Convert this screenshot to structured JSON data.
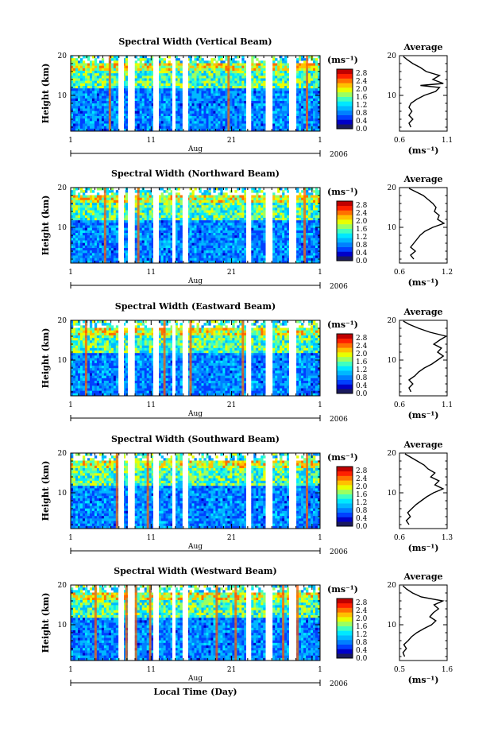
{
  "chart_data": [
    {
      "type": "heatmap",
      "title": "Spectral Width (Vertical Beam)",
      "ylabel": "Height (km)",
      "y_ticks": [
        "20",
        "10"
      ],
      "x_ticks": [
        "1",
        "11",
        "21",
        "1"
      ],
      "month_label": "Aug",
      "year_label": "2006",
      "colorbar": {
        "unit": "(ms⁻¹)",
        "ticks": [
          "2.8",
          "2.4",
          "2.0",
          "1.6",
          "1.2",
          "0.8",
          "0.4",
          "0.0"
        ]
      },
      "profile": {
        "title": "Average",
        "y_ticks": [
          "20",
          "10"
        ],
        "x_ticks": [
          "0.6",
          "1.1"
        ],
        "xlim": [
          0.6,
          1.1
        ],
        "ylim": [
          1,
          20
        ],
        "xlabel": "(ms⁻¹)",
        "points": [
          [
            0.72,
            2
          ],
          [
            0.7,
            3
          ],
          [
            0.74,
            4
          ],
          [
            0.7,
            5
          ],
          [
            0.73,
            6
          ],
          [
            0.7,
            7
          ],
          [
            0.72,
            8
          ],
          [
            0.78,
            9
          ],
          [
            0.86,
            10
          ],
          [
            0.98,
            11
          ],
          [
            1.02,
            12
          ],
          [
            0.82,
            12.5
          ],
          [
            1.06,
            13
          ],
          [
            0.95,
            14
          ],
          [
            1.02,
            15
          ],
          [
            0.88,
            16
          ],
          [
            0.82,
            17
          ],
          [
            0.74,
            18
          ],
          [
            0.68,
            19
          ],
          [
            0.64,
            19.8
          ]
        ]
      }
    },
    {
      "type": "heatmap",
      "title": "Spectral Width (Northward Beam)",
      "ylabel": "Height (km)",
      "y_ticks": [
        "20",
        "10"
      ],
      "x_ticks": [
        "1",
        "11",
        "21",
        "1"
      ],
      "month_label": "Aug",
      "year_label": "2006",
      "colorbar": {
        "unit": "(ms⁻¹)",
        "ticks": [
          "2.8",
          "2.4",
          "2.0",
          "1.6",
          "1.2",
          "0.8",
          "0.4",
          "0.0"
        ]
      },
      "profile": {
        "title": "Average",
        "y_ticks": [
          "20",
          "10"
        ],
        "x_ticks": [
          "0.6",
          "1.2"
        ],
        "xlim": [
          0.6,
          1.2
        ],
        "ylim": [
          1,
          20
        ],
        "xlabel": "(ms⁻¹)",
        "points": [
          [
            0.78,
            2
          ],
          [
            0.74,
            3
          ],
          [
            0.8,
            4
          ],
          [
            0.74,
            5
          ],
          [
            0.78,
            6
          ],
          [
            0.82,
            7
          ],
          [
            0.86,
            8
          ],
          [
            0.92,
            9
          ],
          [
            1.02,
            10
          ],
          [
            1.16,
            11
          ],
          [
            1.08,
            12
          ],
          [
            1.1,
            13
          ],
          [
            1.04,
            14
          ],
          [
            1.06,
            15
          ],
          [
            1.02,
            16
          ],
          [
            0.96,
            17
          ],
          [
            0.9,
            18
          ],
          [
            0.8,
            19
          ],
          [
            0.72,
            19.8
          ]
        ]
      }
    },
    {
      "type": "heatmap",
      "title": "Spectral Width (Eastward Beam)",
      "ylabel": "Height (km)",
      "y_ticks": [
        "20",
        "10"
      ],
      "x_ticks": [
        "1",
        "11",
        "21",
        "1"
      ],
      "month_label": "Aug",
      "year_label": "2006",
      "colorbar": {
        "unit": "(ms⁻¹)",
        "ticks": [
          "2.8",
          "2.4",
          "2.0",
          "1.6",
          "1.2",
          "0.8",
          "0.4",
          "0.0"
        ]
      },
      "profile": {
        "title": "Average",
        "y_ticks": [
          "20",
          "10"
        ],
        "x_ticks": [
          "0.6",
          "1.1"
        ],
        "xlim": [
          0.6,
          1.1
        ],
        "ylim": [
          1,
          20
        ],
        "xlabel": "(ms⁻¹)",
        "points": [
          [
            0.72,
            2
          ],
          [
            0.7,
            3
          ],
          [
            0.74,
            4
          ],
          [
            0.7,
            5
          ],
          [
            0.76,
            6
          ],
          [
            0.8,
            7
          ],
          [
            0.86,
            8
          ],
          [
            0.94,
            9
          ],
          [
            1.0,
            10
          ],
          [
            1.06,
            11
          ],
          [
            1.0,
            12
          ],
          [
            1.04,
            13
          ],
          [
            0.96,
            14
          ],
          [
            1.02,
            15
          ],
          [
            1.09,
            16
          ],
          [
            0.92,
            17
          ],
          [
            0.8,
            18
          ],
          [
            0.7,
            19
          ],
          [
            0.64,
            19.8
          ]
        ]
      }
    },
    {
      "type": "heatmap",
      "title": "Spectral Width (Southward Beam)",
      "ylabel": "Height (km)",
      "y_ticks": [
        "20",
        "10"
      ],
      "x_ticks": [
        "1",
        "11",
        "21",
        "1"
      ],
      "month_label": "Aug",
      "year_label": "2006",
      "colorbar": {
        "unit": "(ms⁻¹)",
        "ticks": [
          "2.8",
          "2.4",
          "2.0",
          "1.6",
          "1.2",
          "0.8",
          "0.4",
          "0.0"
        ]
      },
      "profile": {
        "title": "Average",
        "y_ticks": [
          "20",
          "10"
        ],
        "x_ticks": [
          "0.6",
          "1.3"
        ],
        "xlim": [
          0.6,
          1.3
        ],
        "ylim": [
          1,
          20
        ],
        "xlabel": "(ms⁻¹)",
        "points": [
          [
            0.74,
            2
          ],
          [
            0.7,
            3
          ],
          [
            0.76,
            4
          ],
          [
            0.72,
            5
          ],
          [
            0.78,
            6
          ],
          [
            0.84,
            7
          ],
          [
            0.92,
            8
          ],
          [
            1.0,
            9
          ],
          [
            1.1,
            10
          ],
          [
            1.24,
            11
          ],
          [
            1.12,
            12
          ],
          [
            1.18,
            13
          ],
          [
            1.06,
            14
          ],
          [
            1.12,
            15
          ],
          [
            1.02,
            16
          ],
          [
            0.96,
            17
          ],
          [
            0.86,
            18
          ],
          [
            0.76,
            19
          ],
          [
            0.68,
            19.8
          ]
        ]
      }
    },
    {
      "type": "heatmap",
      "title": "Spectral Width (Westward Beam)",
      "ylabel": "Height (km)",
      "y_ticks": [
        "20",
        "10"
      ],
      "x_ticks": [
        "1",
        "11",
        "21",
        "1"
      ],
      "month_label": "Aug",
      "year_label": "2006",
      "xlabel": "Local Time (Day)",
      "colorbar": {
        "unit": "(ms⁻¹)",
        "ticks": [
          "2.8",
          "2.4",
          "2.0",
          "1.6",
          "1.2",
          "0.8",
          "0.4",
          "0.0"
        ]
      },
      "profile": {
        "title": "Average",
        "y_ticks": [
          "20",
          "10"
        ],
        "x_ticks": [
          "0.5",
          "1.6"
        ],
        "xlim": [
          0.5,
          1.6
        ],
        "ylim": [
          1,
          20
        ],
        "xlabel": "(ms⁻¹)",
        "points": [
          [
            0.62,
            2
          ],
          [
            0.58,
            3
          ],
          [
            0.66,
            4
          ],
          [
            0.6,
            5
          ],
          [
            0.7,
            6
          ],
          [
            0.78,
            7
          ],
          [
            0.9,
            8
          ],
          [
            1.06,
            9
          ],
          [
            1.24,
            10
          ],
          [
            1.34,
            11
          ],
          [
            1.2,
            12
          ],
          [
            1.28,
            13
          ],
          [
            1.4,
            14
          ],
          [
            1.3,
            15
          ],
          [
            1.5,
            16
          ],
          [
            1.0,
            17
          ],
          [
            0.8,
            18
          ],
          [
            0.66,
            19
          ],
          [
            0.58,
            19.8
          ]
        ]
      }
    }
  ]
}
